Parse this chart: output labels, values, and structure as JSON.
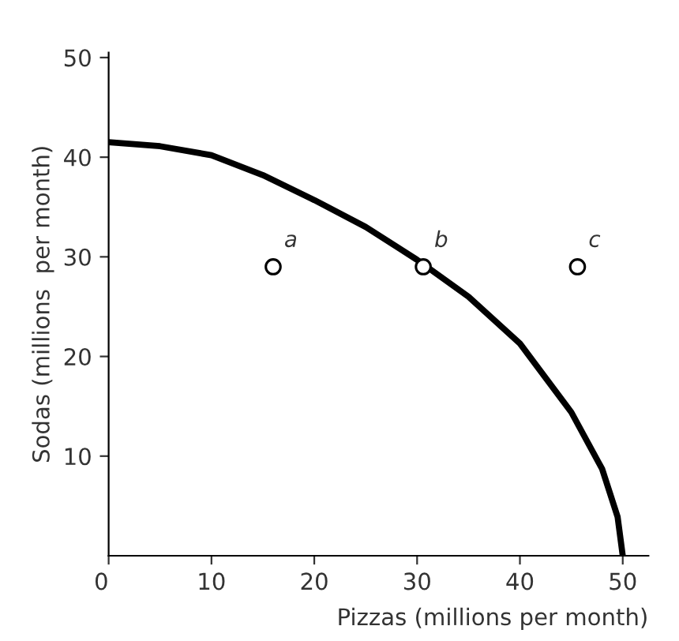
{
  "chart_data": {
    "type": "line",
    "xlabel": "Pizzas (millions per month)",
    "ylabel": "Sodas (millions  per month)",
    "xlim": [
      0,
      52.5
    ],
    "ylim": [
      0,
      50.5
    ],
    "xticks": [
      {
        "value": 0,
        "label": "0"
      },
      10,
      20,
      30,
      40,
      50
    ],
    "yticks": [
      10,
      20,
      30,
      40,
      50
    ],
    "series": [
      {
        "color": "#000000",
        "x": [
          0,
          5,
          10,
          15,
          20,
          25,
          30,
          35,
          40,
          45,
          48,
          49.5,
          50
        ],
        "values": [
          41.5,
          41.1,
          40.2,
          38.2,
          35.7,
          33.0,
          29.7,
          26.0,
          21.3,
          14.4,
          8.7,
          3.9,
          0
        ],
        "marker": "none"
      },
      {
        "type": "scatter",
        "color": "#000000",
        "x": [
          16,
          30.6,
          45.6
        ],
        "values": [
          29,
          29,
          29
        ],
        "marker": "circle"
      }
    ],
    "annotations": [
      {
        "text": "a",
        "x": 16,
        "y": 29
      },
      {
        "text": "b",
        "x": 30.6,
        "y": 29
      },
      {
        "text": "c",
        "x": 45.6,
        "y": 29
      }
    ],
    "grid": false,
    "legend": false
  }
}
